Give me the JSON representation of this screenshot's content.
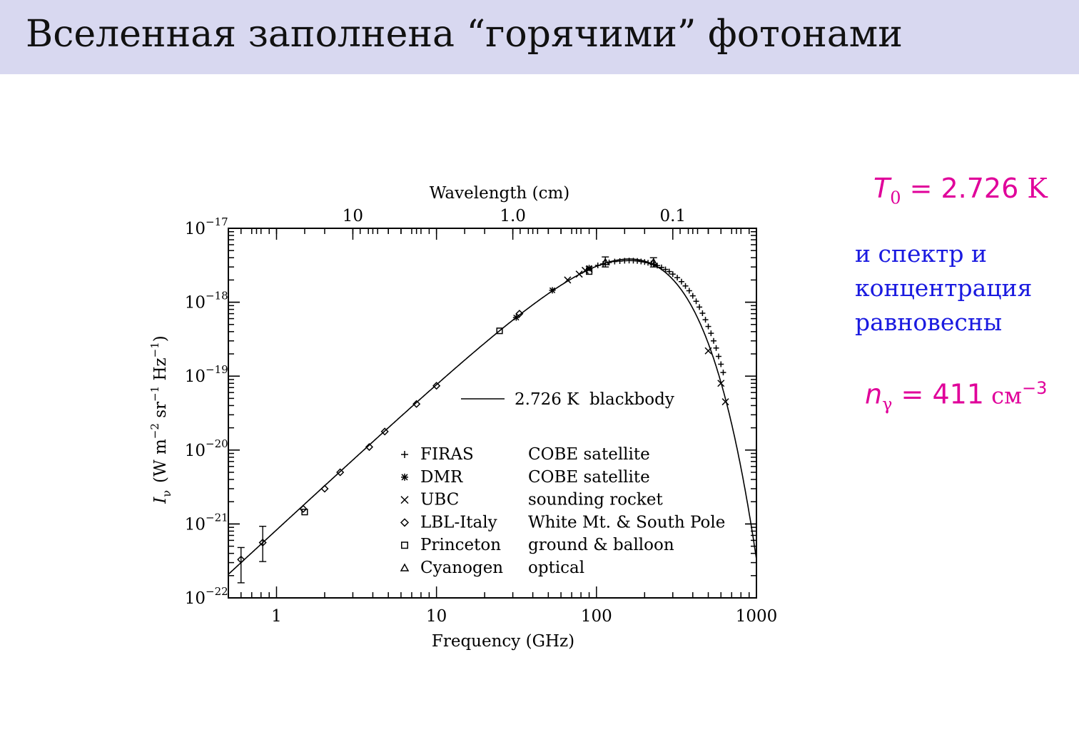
{
  "slide": {
    "title": "Вселенная заполнена “горячими” фотонами"
  },
  "side_panel": {
    "t0_symbol": "T",
    "t0_subscript": "0",
    "t0_equals": " = ",
    "t0_value": "2.726",
    "t0_unit": " K",
    "description_lines": [
      "и спектр и",
      "концентрация",
      "равновесны"
    ],
    "n_symbol": "n",
    "n_subscript": "γ",
    "n_equals": " = ",
    "n_value": "411",
    "n_unit": " см",
    "n_exponent": "−3",
    "colors": {
      "equations": "#e0009a",
      "description": "#1a1ae0"
    }
  },
  "chart_data": {
    "type": "scatter",
    "title": "",
    "top_axis_label": "Wavelength (cm)",
    "top_ticks": [
      {
        "label": "10",
        "freq": 3
      },
      {
        "label": "1.0",
        "freq": 30
      },
      {
        "label": "0.1",
        "freq": 300
      }
    ],
    "xlabel": "Frequency (GHz)",
    "ylabel": "I_ν (W m^-2 sr^-1 Hz^-1)",
    "ylabel_parts": {
      "main": "I",
      "sub": "ν",
      "units": "(W m",
      "e1": "−2",
      "u2": " sr",
      "e2": "−1",
      "u3": " Hz",
      "e3": "−1",
      "close": ")"
    },
    "x_scale": "log",
    "y_scale": "log",
    "xlim": [
      0.5,
      1000
    ],
    "ylim": [
      1e-22,
      1e-17
    ],
    "x_ticks": [
      {
        "label": "1",
        "value": 1
      },
      {
        "label": "10",
        "value": 10
      },
      {
        "label": "100",
        "value": 100
      },
      {
        "label": "1000",
        "value": 1000
      }
    ],
    "y_ticks": [
      {
        "base": "10",
        "exp": "−17",
        "value": 1e-17
      },
      {
        "base": "10",
        "exp": "−18",
        "value": 1e-18
      },
      {
        "base": "10",
        "exp": "−19",
        "value": 1e-19
      },
      {
        "base": "10",
        "exp": "−20",
        "value": 1e-20
      },
      {
        "base": "10",
        "exp": "−21",
        "value": 1e-21
      },
      {
        "base": "10",
        "exp": "−22",
        "value": 1e-22
      }
    ],
    "model_curve": {
      "name": "2.726 K  blackbody",
      "temperature_K": 2.726
    },
    "legend_location": "lower right",
    "legend": [
      {
        "marker": "+",
        "experiment": "FIRAS",
        "description": "COBE satellite"
      },
      {
        "marker": "*",
        "experiment": "DMR",
        "description": "COBE satellite"
      },
      {
        "marker": "x",
        "experiment": "UBC",
        "description": "sounding rocket"
      },
      {
        "marker": "diamond",
        "experiment": "LBL-Italy",
        "description": "White Mt. & South Pole"
      },
      {
        "marker": "square",
        "experiment": "Princeton",
        "description": "ground & balloon"
      },
      {
        "marker": "triangle",
        "experiment": "Cyanogen",
        "description": "optical"
      }
    ],
    "series": [
      {
        "name": "LBL-Italy",
        "marker": "diamond",
        "points": [
          {
            "x": 0.6,
            "y": 3.3e-22,
            "err_low": 1.6e-22,
            "err_high": 4.8e-22
          },
          {
            "x": 0.82,
            "y": 5.6e-22,
            "err_low": 3.1e-22,
            "err_high": 9.3e-22
          },
          {
            "x": 1.47,
            "y": 1.6e-21
          },
          {
            "x": 2.0,
            "y": 3e-21
          },
          {
            "x": 2.5,
            "y": 5e-21
          },
          {
            "x": 3.8,
            "y": 1.1e-20
          },
          {
            "x": 4.75,
            "y": 1.78e-20
          },
          {
            "x": 7.5,
            "y": 4.2e-20
          },
          {
            "x": 10.0,
            "y": 7.4e-20
          },
          {
            "x": 33.0,
            "y": 7e-19
          }
        ]
      },
      {
        "name": "Princeton",
        "marker": "square",
        "points": [
          {
            "x": 1.5,
            "y": 1.45e-21
          },
          {
            "x": 24.8,
            "y": 4.1e-19
          },
          {
            "x": 90.0,
            "y": 2.6e-18
          }
        ]
      },
      {
        "name": "DMR",
        "marker": "*",
        "points": [
          {
            "x": 31.5,
            "y": 6.2e-19
          },
          {
            "x": 53.0,
            "y": 1.45e-18
          },
          {
            "x": 90.0,
            "y": 2.9e-18
          }
        ]
      },
      {
        "name": "Cyanogen",
        "marker": "triangle",
        "points": [
          {
            "x": 113.6,
            "y": 3.5e-18,
            "err_low": 3e-18,
            "err_high": 4.1e-18
          },
          {
            "x": 227.3,
            "y": 3.5e-18,
            "err_low": 3e-18,
            "err_high": 4e-18
          }
        ]
      },
      {
        "name": "UBC",
        "marker": "x",
        "points": [
          {
            "x": 66.0,
            "y": 2e-18
          },
          {
            "x": 78.0,
            "y": 2.4e-18
          },
          {
            "x": 85.0,
            "y": 2.7e-18
          },
          {
            "x": 90.0,
            "y": 2.8e-18
          },
          {
            "x": 500.0,
            "y": 2.2e-19
          },
          {
            "x": 600.0,
            "y": 8e-20
          },
          {
            "x": 640.0,
            "y": 4.5e-20
          }
        ]
      },
      {
        "name": "FIRAS",
        "marker": "+",
        "points": [
          {
            "x": 102,
            "y": 3.15e-18
          },
          {
            "x": 110,
            "y": 3.3e-18
          },
          {
            "x": 120,
            "y": 3.45e-18
          },
          {
            "x": 130,
            "y": 3.55e-18
          },
          {
            "x": 140,
            "y": 3.6e-18
          },
          {
            "x": 150,
            "y": 3.64e-18
          },
          {
            "x": 160,
            "y": 3.66e-18
          },
          {
            "x": 170,
            "y": 3.65e-18
          },
          {
            "x": 180,
            "y": 3.62e-18
          },
          {
            "x": 190,
            "y": 3.56e-18
          },
          {
            "x": 200,
            "y": 3.5e-18
          },
          {
            "x": 210,
            "y": 3.42e-18
          },
          {
            "x": 220,
            "y": 3.34e-18
          },
          {
            "x": 230,
            "y": 3.24e-18
          },
          {
            "x": 240,
            "y": 3.13e-18
          },
          {
            "x": 255,
            "y": 2.96e-18
          },
          {
            "x": 270,
            "y": 2.78e-18
          },
          {
            "x": 285,
            "y": 2.6e-18
          },
          {
            "x": 300,
            "y": 2.4e-18
          },
          {
            "x": 320,
            "y": 2.15e-18
          },
          {
            "x": 340,
            "y": 1.9e-18
          },
          {
            "x": 360,
            "y": 1.66e-18
          },
          {
            "x": 380,
            "y": 1.43e-18
          },
          {
            "x": 400,
            "y": 1.22e-18
          },
          {
            "x": 420,
            "y": 1.03e-18
          },
          {
            "x": 440,
            "y": 8.6e-19
          },
          {
            "x": 460,
            "y": 7.1e-19
          },
          {
            "x": 480,
            "y": 5.8e-19
          },
          {
            "x": 500,
            "y": 4.7e-19
          },
          {
            "x": 520,
            "y": 3.8e-19
          },
          {
            "x": 540,
            "y": 3e-19
          },
          {
            "x": 560,
            "y": 2.4e-19
          },
          {
            "x": 580,
            "y": 1.85e-19
          },
          {
            "x": 600,
            "y": 1.45e-19
          },
          {
            "x": 620,
            "y": 1.12e-19
          }
        ]
      }
    ]
  }
}
